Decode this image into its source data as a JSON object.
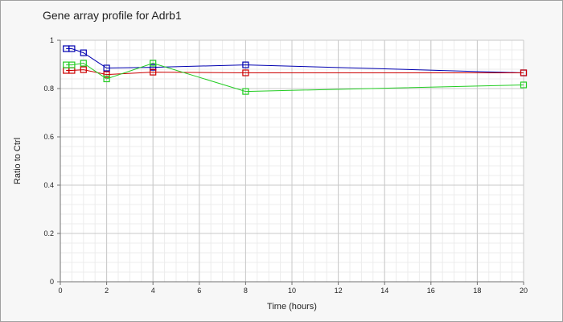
{
  "chart_data": {
    "type": "line",
    "title": "Gene array profile for Adrb1",
    "xlabel": "Time (hours)",
    "ylabel": "Ratio to Ctrl",
    "xlim": [
      0,
      20
    ],
    "ylim": [
      0,
      1
    ],
    "x_ticks": [
      0,
      2,
      4,
      6,
      8,
      10,
      12,
      14,
      16,
      18,
      20
    ],
    "y_ticks": [
      0,
      0.2,
      0.4,
      0.6,
      0.8,
      1
    ],
    "y_tick_labels": [
      "0",
      "0.2",
      "0.4",
      "0.6",
      "0.8",
      "1"
    ],
    "grid": true,
    "legend": "none",
    "marker": "square",
    "series": [
      {
        "color": "#0000b0",
        "points": [
          [
            0.25,
            0.965
          ],
          [
            0.5,
            0.965
          ],
          [
            1,
            0.948
          ],
          [
            2,
            0.885
          ],
          [
            4,
            0.888
          ],
          [
            8,
            0.898
          ],
          [
            20,
            0.865
          ]
        ]
      },
      {
        "color": "#cc0000",
        "points": [
          [
            0.25,
            0.875
          ],
          [
            0.5,
            0.875
          ],
          [
            1,
            0.878
          ],
          [
            2,
            0.858
          ],
          [
            4,
            0.868
          ],
          [
            8,
            0.865
          ],
          [
            20,
            0.865
          ]
        ]
      },
      {
        "color": "#22cc22",
        "points": [
          [
            0.25,
            0.898
          ],
          [
            0.5,
            0.898
          ],
          [
            1,
            0.905
          ],
          [
            2,
            0.84
          ],
          [
            4,
            0.905
          ],
          [
            8,
            0.788
          ],
          [
            20,
            0.815
          ]
        ]
      }
    ]
  }
}
